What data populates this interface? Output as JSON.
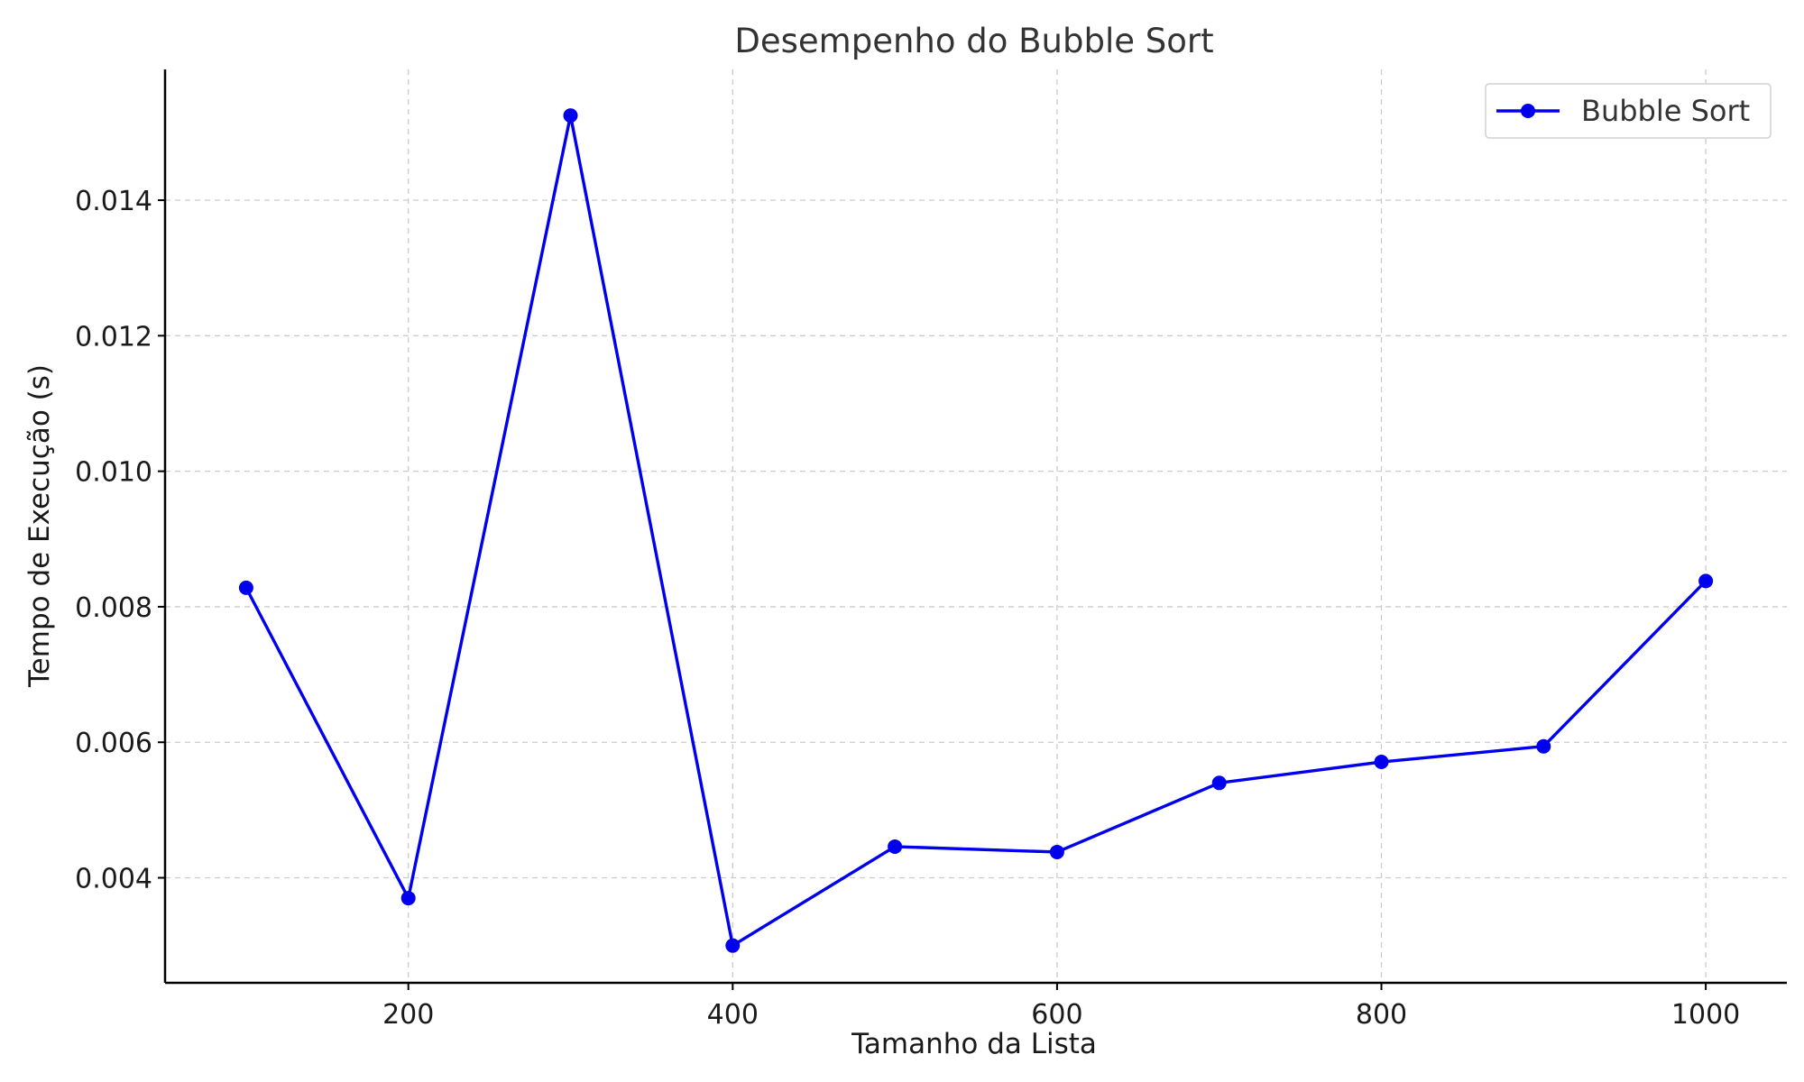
{
  "chart_data": {
    "type": "line",
    "title": "Desempenho do Bubble Sort",
    "xlabel": "Tamanho da Lista",
    "ylabel": "Tempo de Execução (s)",
    "x": [
      100,
      200,
      300,
      400,
      500,
      600,
      700,
      800,
      900,
      1000
    ],
    "xlim": [
      50,
      1050
    ],
    "ylim": [
      0.00245,
      0.01593
    ],
    "xticks": [
      200,
      400,
      600,
      800,
      1000
    ],
    "xtick_labels": [
      "200",
      "400",
      "600",
      "800",
      "1000"
    ],
    "yticks": [
      0.004,
      0.006,
      0.008,
      0.01,
      0.012,
      0.014
    ],
    "ytick_labels": [
      "0.004",
      "0.006",
      "0.008",
      "0.010",
      "0.012",
      "0.014"
    ],
    "grid": true,
    "legend_position": "top-right",
    "series": [
      {
        "name": "Bubble Sort",
        "color": "#0000ee",
        "marker": "circle",
        "values": [
          0.00828,
          0.0037,
          0.01525,
          0.003,
          0.00446,
          0.00438,
          0.0054,
          0.00571,
          0.00594,
          0.00838
        ]
      }
    ]
  }
}
